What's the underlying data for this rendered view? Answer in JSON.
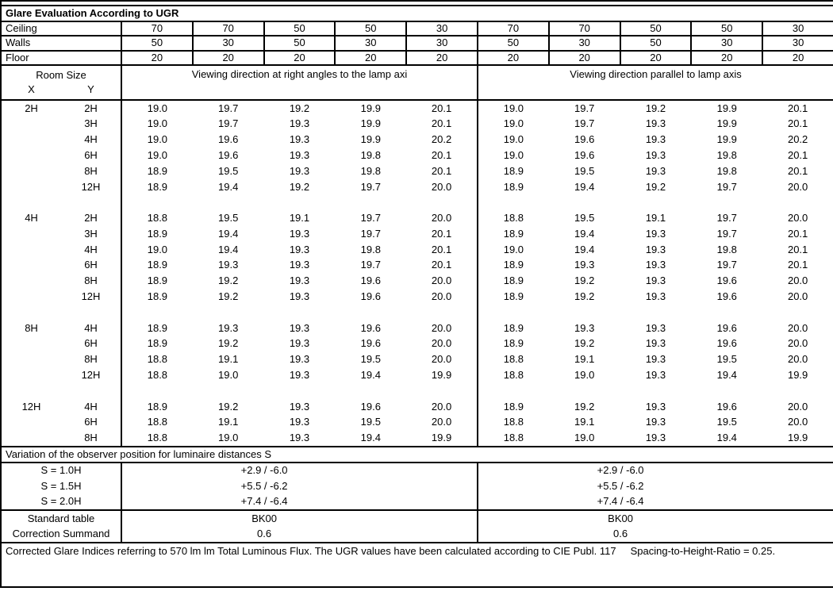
{
  "title": "Glare Evaluation According to UGR",
  "surface_rows": [
    {
      "label": "Ceiling",
      "values": [
        "70",
        "70",
        "50",
        "50",
        "30",
        "70",
        "70",
        "50",
        "50",
        "30"
      ]
    },
    {
      "label": "Walls",
      "values": [
        "50",
        "30",
        "50",
        "30",
        "30",
        "50",
        "30",
        "50",
        "30",
        "30"
      ]
    },
    {
      "label": "Floor",
      "values": [
        "20",
        "20",
        "20",
        "20",
        "20",
        "20",
        "20",
        "20",
        "20",
        "20"
      ]
    }
  ],
  "header": {
    "room_size": "Room Size",
    "x": "X",
    "y": "Y",
    "left_span": "Viewing direction at right angles to the lamp axi",
    "right_span": "Viewing direction parallel to lamp axis"
  },
  "ugr_groups": [
    {
      "x": "2H",
      "rows": [
        {
          "y": "2H",
          "values": [
            "19.0",
            "19.7",
            "19.2",
            "19.9",
            "20.1",
            "19.0",
            "19.7",
            "19.2",
            "19.9",
            "20.1"
          ]
        },
        {
          "y": "3H",
          "values": [
            "19.0",
            "19.7",
            "19.3",
            "19.9",
            "20.1",
            "19.0",
            "19.7",
            "19.3",
            "19.9",
            "20.1"
          ]
        },
        {
          "y": "4H",
          "values": [
            "19.0",
            "19.6",
            "19.3",
            "19.9",
            "20.2",
            "19.0",
            "19.6",
            "19.3",
            "19.9",
            "20.2"
          ]
        },
        {
          "y": "6H",
          "values": [
            "19.0",
            "19.6",
            "19.3",
            "19.8",
            "20.1",
            "19.0",
            "19.6",
            "19.3",
            "19.8",
            "20.1"
          ]
        },
        {
          "y": "8H",
          "values": [
            "18.9",
            "19.5",
            "19.3",
            "19.8",
            "20.1",
            "18.9",
            "19.5",
            "19.3",
            "19.8",
            "20.1"
          ]
        },
        {
          "y": "12H",
          "values": [
            "18.9",
            "19.4",
            "19.2",
            "19.7",
            "20.0",
            "18.9",
            "19.4",
            "19.2",
            "19.7",
            "20.0"
          ]
        }
      ]
    },
    {
      "x": "4H",
      "rows": [
        {
          "y": "2H",
          "values": [
            "18.8",
            "19.5",
            "19.1",
            "19.7",
            "20.0",
            "18.8",
            "19.5",
            "19.1",
            "19.7",
            "20.0"
          ]
        },
        {
          "y": "3H",
          "values": [
            "18.9",
            "19.4",
            "19.3",
            "19.7",
            "20.1",
            "18.9",
            "19.4",
            "19.3",
            "19.7",
            "20.1"
          ]
        },
        {
          "y": "4H",
          "values": [
            "19.0",
            "19.4",
            "19.3",
            "19.8",
            "20.1",
            "19.0",
            "19.4",
            "19.3",
            "19.8",
            "20.1"
          ]
        },
        {
          "y": "6H",
          "values": [
            "18.9",
            "19.3",
            "19.3",
            "19.7",
            "20.1",
            "18.9",
            "19.3",
            "19.3",
            "19.7",
            "20.1"
          ]
        },
        {
          "y": "8H",
          "values": [
            "18.9",
            "19.2",
            "19.3",
            "19.6",
            "20.0",
            "18.9",
            "19.2",
            "19.3",
            "19.6",
            "20.0"
          ]
        },
        {
          "y": "12H",
          "values": [
            "18.9",
            "19.2",
            "19.3",
            "19.6",
            "20.0",
            "18.9",
            "19.2",
            "19.3",
            "19.6",
            "20.0"
          ]
        }
      ]
    },
    {
      "x": "8H",
      "rows": [
        {
          "y": "4H",
          "values": [
            "18.9",
            "19.3",
            "19.3",
            "19.6",
            "20.0",
            "18.9",
            "19.3",
            "19.3",
            "19.6",
            "20.0"
          ]
        },
        {
          "y": "6H",
          "values": [
            "18.9",
            "19.2",
            "19.3",
            "19.6",
            "20.0",
            "18.9",
            "19.2",
            "19.3",
            "19.6",
            "20.0"
          ]
        },
        {
          "y": "8H",
          "values": [
            "18.8",
            "19.1",
            "19.3",
            "19.5",
            "20.0",
            "18.8",
            "19.1",
            "19.3",
            "19.5",
            "20.0"
          ]
        },
        {
          "y": "12H",
          "values": [
            "18.8",
            "19.0",
            "19.3",
            "19.4",
            "19.9",
            "18.8",
            "19.0",
            "19.3",
            "19.4",
            "19.9"
          ]
        }
      ]
    },
    {
      "x": "12H",
      "rows": [
        {
          "y": "4H",
          "values": [
            "18.9",
            "19.2",
            "19.3",
            "19.6",
            "20.0",
            "18.9",
            "19.2",
            "19.3",
            "19.6",
            "20.0"
          ]
        },
        {
          "y": "6H",
          "values": [
            "18.8",
            "19.1",
            "19.3",
            "19.5",
            "20.0",
            "18.8",
            "19.1",
            "19.3",
            "19.5",
            "20.0"
          ]
        },
        {
          "y": "8H",
          "values": [
            "18.8",
            "19.0",
            "19.3",
            "19.4",
            "19.9",
            "18.8",
            "19.0",
            "19.3",
            "19.4",
            "19.9"
          ]
        }
      ]
    }
  ],
  "variation_header": "Variation of the observer position for luminaire distances S",
  "variation_rows": [
    {
      "label": "S = 1.0H",
      "left": "+2.9 / -6.0",
      "right": "+2.9 / -6.0"
    },
    {
      "label": "S = 1.5H",
      "left": "+5.5 / -6.2",
      "right": "+5.5 / -6.2"
    },
    {
      "label": "S = 2.0H",
      "left": "+7.4 / -6.4",
      "right": "+7.4 / -6.4"
    }
  ],
  "summary_rows": [
    {
      "label": "Standard table",
      "left": "BK00",
      "right": "BK00"
    },
    {
      "label": "Correction Summand",
      "left": "0.6",
      "right": "0.6"
    }
  ],
  "footer": "Corrected Glare Indices referring to 570 lm lm Total Luminous Flux. The UGR values have been calculated according to CIE Publ. 117     Spacing-to-Height-Ratio = 0.25."
}
